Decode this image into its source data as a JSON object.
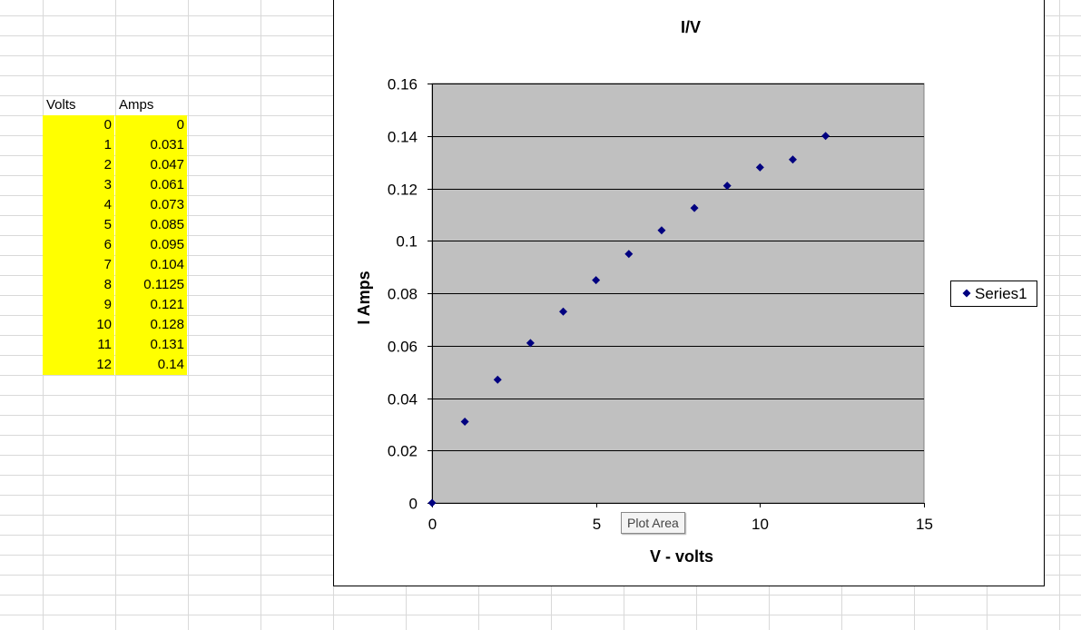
{
  "sheet": {
    "headers": {
      "volts": "Volts",
      "amps": "Amps"
    },
    "rows": [
      {
        "volts": "0",
        "amps": "0"
      },
      {
        "volts": "1",
        "amps": "0.031"
      },
      {
        "volts": "2",
        "amps": "0.047"
      },
      {
        "volts": "3",
        "amps": "0.061"
      },
      {
        "volts": "4",
        "amps": "0.073"
      },
      {
        "volts": "5",
        "amps": "0.085"
      },
      {
        "volts": "6",
        "amps": "0.095"
      },
      {
        "volts": "7",
        "amps": "0.104"
      },
      {
        "volts": "8",
        "amps": "0.1125"
      },
      {
        "volts": "9",
        "amps": "0.121"
      },
      {
        "volts": "10",
        "amps": "0.128"
      },
      {
        "volts": "11",
        "amps": "0.131"
      },
      {
        "volts": "12",
        "amps": "0.14"
      }
    ],
    "highlight_color": "#ffff00",
    "gridline_color": "#d9d9d9"
  },
  "tooltip": {
    "text": "Plot Area"
  },
  "chart_data": {
    "type": "scatter",
    "title": "I/V",
    "xlabel": "V - volts",
    "ylabel": "I Amps",
    "xlim": [
      0,
      15
    ],
    "ylim": [
      0,
      0.16
    ],
    "xticks": [
      0,
      5,
      10,
      15
    ],
    "yticks": [
      0,
      0.02,
      0.04,
      0.06,
      0.08,
      0.1,
      0.12,
      0.14,
      0.16
    ],
    "xtick_labels": [
      "0",
      "5",
      "10",
      "15"
    ],
    "ytick_labels": [
      "0",
      "0.02",
      "0.04",
      "0.06",
      "0.08",
      "0.1",
      "0.12",
      "0.14",
      "0.16"
    ],
    "grid": "horizontal major",
    "legend_position": "right",
    "plot_background": "#c0c0c0",
    "marker": "diamond",
    "series": [
      {
        "name": "Series1",
        "color": "#000080",
        "x": [
          0,
          1,
          2,
          3,
          4,
          5,
          6,
          7,
          8,
          9,
          10,
          11,
          12
        ],
        "y": [
          0,
          0.031,
          0.047,
          0.061,
          0.073,
          0.085,
          0.095,
          0.104,
          0.1125,
          0.121,
          0.128,
          0.131,
          0.14
        ]
      }
    ]
  }
}
